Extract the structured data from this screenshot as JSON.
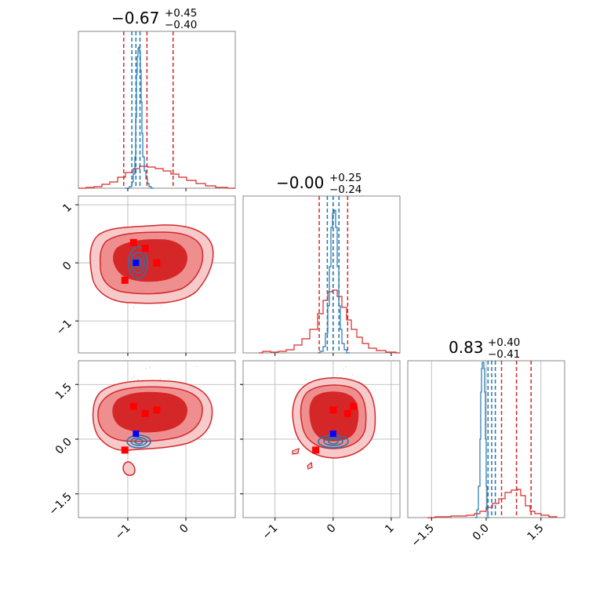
{
  "chart_data": {
    "type": "corner",
    "params": [
      {
        "id": "p1",
        "title_main": "−0.67",
        "title_plus": "+0.45",
        "title_minus": "−0.40",
        "red_quantiles": [
          -1.07,
          -0.67,
          -0.22
        ],
        "blue_quantiles": [
          -0.93,
          -0.86,
          -0.79
        ]
      },
      {
        "id": "p2",
        "title_main": "−0.00",
        "title_plus": "+0.25",
        "title_minus": "−0.24",
        "red_quantiles": [
          -0.24,
          0.0,
          0.25
        ],
        "blue_quantiles": [
          -0.1,
          0.0,
          0.1
        ]
      },
      {
        "id": "p3",
        "title_main": "0.83",
        "title_plus": "+0.40",
        "title_minus": "−0.41",
        "red_quantiles": [
          0.42,
          0.83,
          1.23
        ],
        "blue_quantiles": [
          0.05,
          0.15,
          0.25
        ]
      }
    ],
    "axis_ranges": {
      "p1": [
        -1.85,
        0.85
      ],
      "p2": [
        -1.55,
        1.15
      ],
      "p3": [
        -2.15,
        2.15
      ]
    },
    "ticks": {
      "p1": [
        {
          "v": -1,
          "label": "−1"
        },
        {
          "v": 0,
          "label": "0"
        }
      ],
      "p2": [
        {
          "v": -1,
          "label": "−1"
        },
        {
          "v": 0,
          "label": "0"
        },
        {
          "v": 1,
          "label": "1"
        }
      ],
      "p3": [
        {
          "v": -1.5,
          "label": "−1.5"
        },
        {
          "v": 0.0,
          "label": "0.0"
        },
        {
          "v": 1.5,
          "label": "1.5"
        }
      ]
    },
    "truth_markers": {
      "red_squares": [
        [
          -0.9,
          0.35,
          0.9
        ],
        [
          -0.7,
          0.25,
          0.7
        ],
        [
          -0.5,
          0.0,
          0.8
        ],
        [
          -1.05,
          -0.3,
          -0.3
        ]
      ],
      "blue_square": [
        -0.86,
        0.0,
        0.15
      ]
    },
    "colors": {
      "red": "#d62728",
      "blue": "#1f77b4",
      "marker_blue": "#0000ff",
      "marker_red": "#ff0000",
      "grid": "#b0b0b0"
    }
  }
}
